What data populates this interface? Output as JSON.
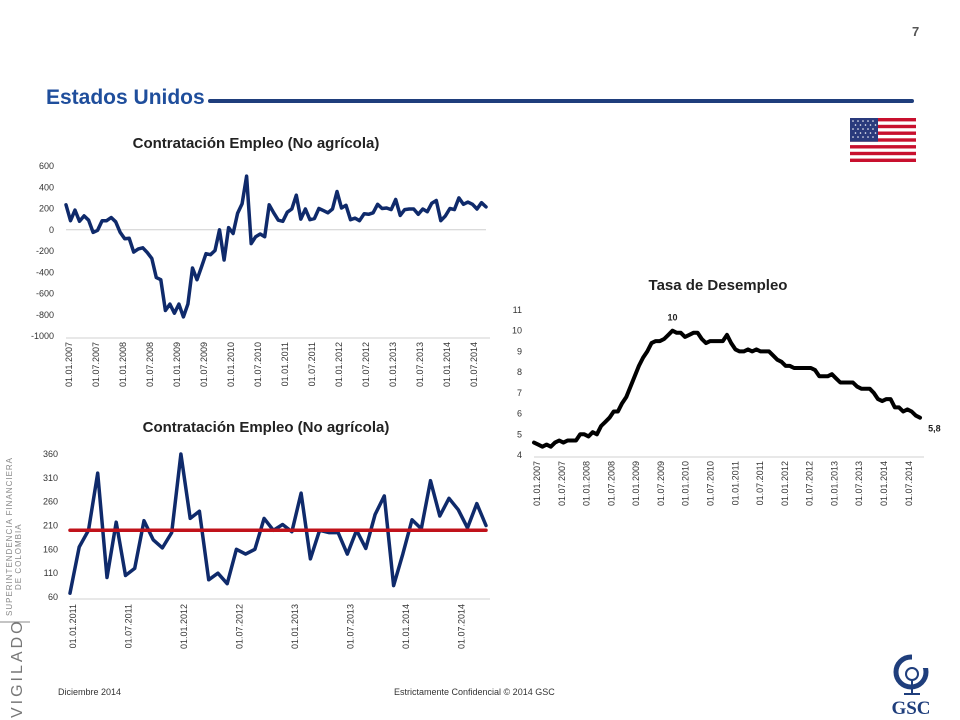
{
  "page": {
    "number": "7",
    "section_title": "Estados Unidos",
    "footer_date": "Diciembre 2014",
    "footer_confidential": "Estrictamente Confidencial © 2014 GSC",
    "side_text_1": "SUPERINTENDENCIA FINANCIERA",
    "side_text_2": "DE COLOMBIA",
    "side_vigilado": "VIGILADO",
    "logo_text": "GSC",
    "colors": {
      "title_blue": "#1f4e9c",
      "rule": "#1f3e7c",
      "series_navy": "#0f2a6b",
      "mean_red": "#c0121a",
      "unemployment_black": "#000000"
    },
    "icons": [
      "us-flag-icon",
      "gsc-logo-icon"
    ]
  },
  "chart_data": [
    {
      "type": "line",
      "title": "Contratación Empleo (No agrícola)",
      "xlabel": "",
      "ylabel": "",
      "ylim": [
        -1000,
        600
      ],
      "yticks": [
        600,
        400,
        200,
        0,
        -200,
        -400,
        -600,
        -800,
        -1000
      ],
      "ytick_labels": [
        "600",
        "400",
        "200",
        "0",
        "-200",
        "-400",
        "-600",
        "-800",
        "-1000"
      ],
      "xtick_labels": [
        "01.01.2007",
        "01.07.2007",
        "01.01.2008",
        "01.07.2008",
        "01.01.2009",
        "01.07.2009",
        "01.01.2010",
        "01.07.2010",
        "01.01.2011",
        "01.07.2011",
        "01.01.2012",
        "01.07.2012",
        "01.01.2013",
        "01.07.2013",
        "01.01.2014",
        "01.07.2014"
      ],
      "grid": false,
      "series": [
        {
          "values": [
            235,
            85,
            185,
            80,
            130,
            90,
            -25,
            -5,
            85,
            85,
            115,
            75,
            -25,
            -85,
            -80,
            -210,
            -180,
            -170,
            -215,
            -270,
            -450,
            -470,
            -760,
            -700,
            -785,
            -700,
            -820,
            -700,
            -360,
            -470,
            -350,
            -225,
            -235,
            -195,
            0,
            -285,
            20,
            -35,
            155,
            245,
            505,
            -130,
            -65,
            -40,
            -65,
            235,
            160,
            90,
            80,
            165,
            195,
            325,
            100,
            195,
            95,
            105,
            200,
            180,
            160,
            195,
            360,
            205,
            230,
            95,
            110,
            85,
            150,
            145,
            160,
            240,
            200,
            205,
            190,
            285,
            135,
            190,
            195,
            195,
            145,
            195,
            170,
            250,
            275,
            85,
            130,
            200,
            190,
            300,
            240,
            260,
            240,
            195,
            255,
            215
          ]
        }
      ]
    },
    {
      "type": "line",
      "title": "Contratación Empleo (No agrícola)",
      "xlabel": "",
      "ylabel": "",
      "ylim": [
        60,
        360
      ],
      "yticks": [
        360,
        310,
        260,
        210,
        160,
        110,
        60
      ],
      "ytick_labels": [
        "360",
        "310",
        "260",
        "210",
        "160",
        "110",
        "60"
      ],
      "xtick_labels": [
        "01.01.2011",
        "01.07.2011",
        "01.01.2012",
        "01.07.2012",
        "01.01.2013",
        "01.07.2013",
        "01.01.2014",
        "01.07.2014"
      ],
      "grid": false,
      "series": [
        {
          "values": [
            68,
            165,
            200,
            320,
            101,
            217,
            105,
            120,
            220,
            180,
            163,
            195,
            360,
            225,
            240,
            96,
            110,
            88,
            160,
            150,
            160,
            225,
            200,
            212,
            197,
            278,
            140,
            200,
            195,
            195,
            150,
            200,
            162,
            233,
            272,
            84,
            150,
            222,
            203,
            304,
            230,
            267,
            243,
            205,
            256,
            210
          ]
        },
        {
          "values": [
            200,
            200,
            200,
            200,
            200,
            200,
            200,
            200,
            200,
            200,
            200,
            200,
            200,
            200,
            200,
            200,
            200,
            200,
            200,
            200,
            200,
            200,
            200,
            200,
            200,
            200,
            200,
            200,
            200,
            200,
            200,
            200,
            200,
            200,
            200,
            200,
            200,
            200,
            200,
            200,
            200,
            200,
            200,
            200,
            200,
            200
          ]
        }
      ]
    },
    {
      "type": "line",
      "title": "Tasa de Desempleo",
      "xlabel": "",
      "ylabel": "",
      "ylim": [
        4,
        11
      ],
      "yticks": [
        11,
        10,
        9,
        8,
        7,
        6,
        5,
        4
      ],
      "ytick_labels": [
        "11",
        "10",
        "9",
        "8",
        "7",
        "6",
        "5",
        "4"
      ],
      "xtick_labels": [
        "01.01.2007",
        "01.07.2007",
        "01.01.2008",
        "01.07.2008",
        "01.01.2009",
        "01.07.2009",
        "01.01.2010",
        "01.07.2010",
        "01.01.2011",
        "01.07.2011",
        "01.01.2012",
        "01.07.2012",
        "01.01.2013",
        "01.07.2013",
        "01.01.2014",
        "01.07.2014"
      ],
      "grid": false,
      "annotations": [
        {
          "text": "10",
          "x_index": 33,
          "value": 10.0
        },
        {
          "text": "5,8",
          "x_index": 94,
          "value": 5.8
        }
      ],
      "series": [
        {
          "values": [
            4.6,
            4.5,
            4.4,
            4.5,
            4.4,
            4.6,
            4.7,
            4.6,
            4.7,
            4.7,
            4.7,
            5.0,
            5.0,
            4.9,
            5.1,
            5.0,
            5.4,
            5.6,
            5.8,
            6.1,
            6.1,
            6.5,
            6.8,
            7.3,
            7.8,
            8.3,
            8.7,
            9.0,
            9.4,
            9.5,
            9.5,
            9.6,
            9.8,
            10.0,
            9.9,
            9.9,
            9.7,
            9.8,
            9.9,
            9.9,
            9.6,
            9.4,
            9.5,
            9.5,
            9.5,
            9.5,
            9.8,
            9.4,
            9.1,
            9.0,
            9.0,
            9.1,
            9.0,
            9.1,
            9.0,
            9.0,
            9.0,
            8.8,
            8.6,
            8.5,
            8.3,
            8.3,
            8.2,
            8.2,
            8.2,
            8.2,
            8.2,
            8.1,
            7.8,
            7.8,
            7.8,
            7.9,
            7.7,
            7.5,
            7.5,
            7.5,
            7.5,
            7.3,
            7.2,
            7.2,
            7.2,
            7.0,
            6.7,
            6.6,
            6.7,
            6.7,
            6.3,
            6.3,
            6.1,
            6.2,
            6.1,
            5.9,
            5.8
          ]
        }
      ]
    }
  ]
}
